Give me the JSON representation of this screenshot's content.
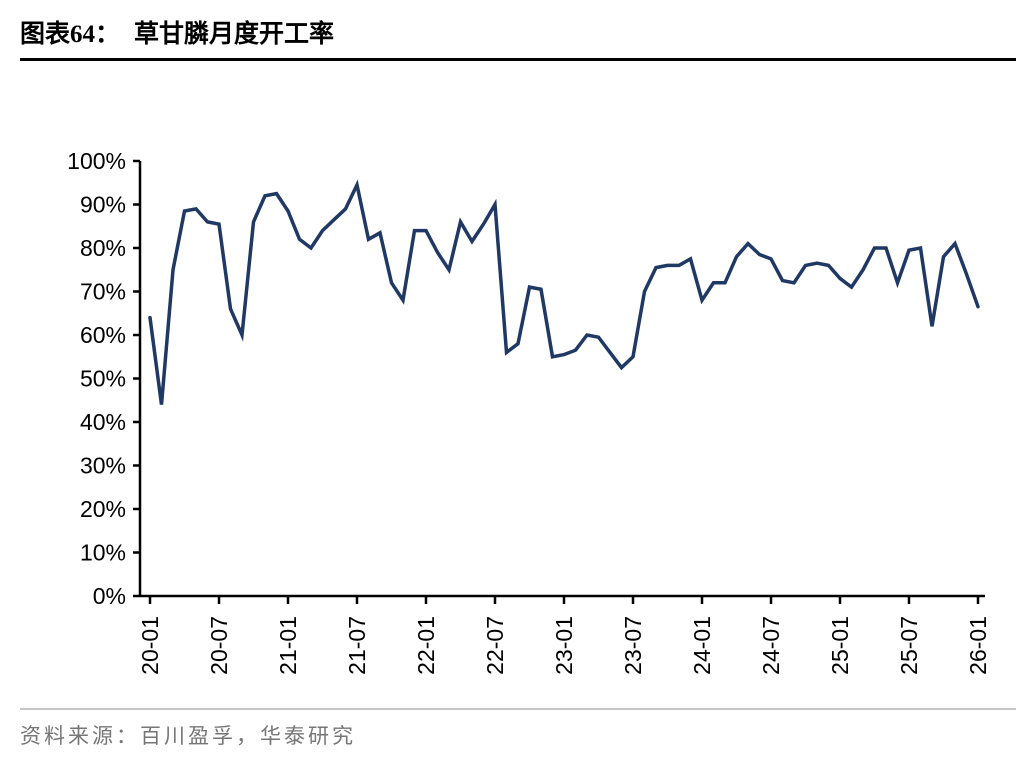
{
  "header": {
    "title_prefix": "图表64：",
    "title_text": "草甘膦月度开工率"
  },
  "footer": {
    "source_text": "资料来源：百川盈孚，华泰研究"
  },
  "chart_data": {
    "type": "line",
    "title": "草甘膦月度开工率",
    "x": [
      "20-01",
      "20-02",
      "20-03",
      "20-04",
      "20-05",
      "20-06",
      "20-07",
      "20-08",
      "20-09",
      "20-10",
      "20-11",
      "20-12",
      "21-01",
      "21-02",
      "21-03",
      "21-04",
      "21-05",
      "21-06",
      "21-07",
      "21-08",
      "21-09",
      "21-10",
      "21-11",
      "21-12",
      "22-01",
      "22-02",
      "22-03",
      "22-04",
      "22-05",
      "22-06",
      "22-07",
      "22-08",
      "22-09",
      "22-10",
      "22-11",
      "22-12",
      "23-01",
      "23-02",
      "23-03",
      "23-04",
      "23-05",
      "23-06",
      "23-07",
      "23-08",
      "23-09",
      "23-10",
      "23-11",
      "23-12",
      "24-01",
      "24-02",
      "24-03",
      "24-04",
      "24-05",
      "24-06",
      "24-07",
      "24-08",
      "24-09",
      "24-10",
      "24-11",
      "24-12",
      "25-01",
      "25-02",
      "25-03",
      "25-04",
      "25-05",
      "25-06",
      "25-07",
      "25-08",
      "25-09",
      "25-10",
      "25-11",
      "25-12",
      "26-01"
    ],
    "values": [
      64,
      44,
      75,
      88.5,
      89,
      86,
      85.5,
      66,
      60,
      86,
      92,
      92.5,
      88.5,
      82,
      80,
      84,
      86.5,
      89,
      94.5,
      82,
      83.5,
      72,
      68,
      84,
      84,
      79,
      75,
      86,
      81.5,
      85.5,
      90,
      56,
      58,
      71,
      70.5,
      55,
      55.5,
      56.5,
      60,
      59.5,
      56,
      52.5,
      55,
      70,
      75.5,
      76,
      76,
      77.5,
      68,
      72,
      72,
      78,
      81,
      78.5,
      77.5,
      72.5,
      72,
      76,
      76.5,
      76,
      73,
      71,
      75,
      80,
      80,
      72,
      79.5,
      80,
      62,
      78,
      81,
      74,
      66.5
    ],
    "xtick_labels": [
      "20-01",
      "20-07",
      "21-01",
      "21-07",
      "22-01",
      "22-07",
      "23-01",
      "23-07",
      "24-01",
      "24-07",
      "25-01",
      "25-07",
      "26-01"
    ],
    "ylim": [
      0,
      100
    ],
    "ytick_step": 10,
    "ytick_suffix": "%",
    "grid": false,
    "legend": "none",
    "line_color": "#1f3864",
    "axis_color": "#000000"
  }
}
